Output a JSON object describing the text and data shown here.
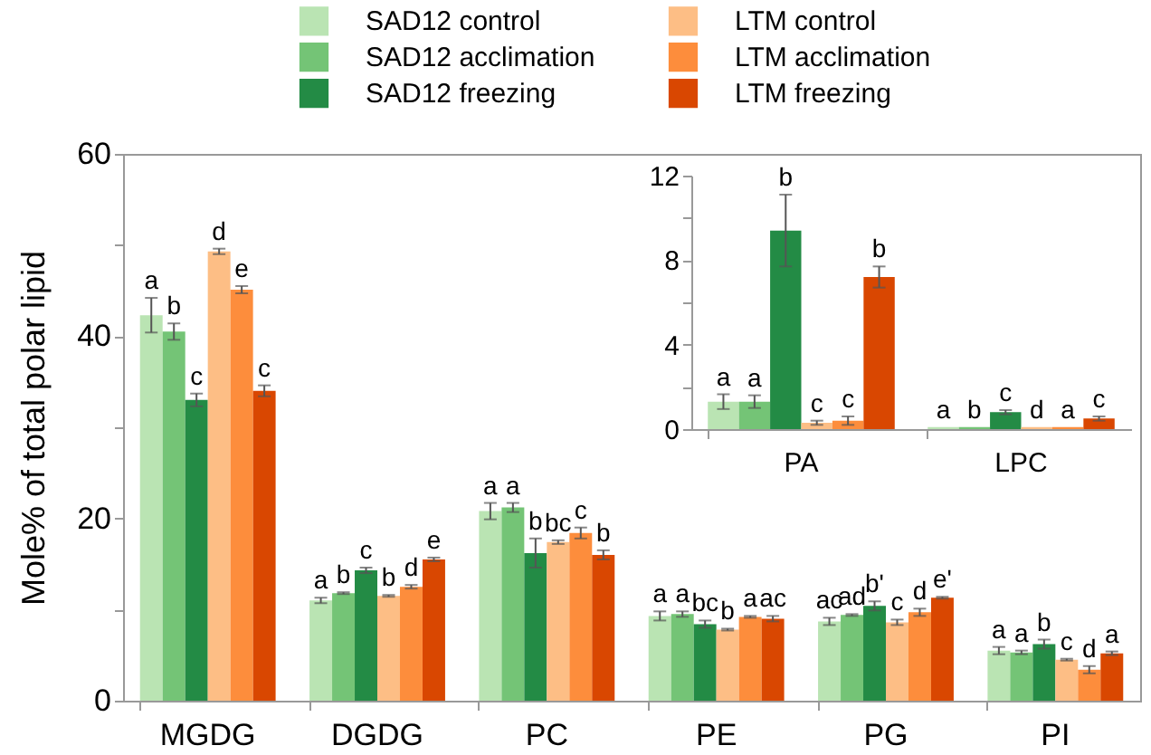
{
  "chart_data": [
    {
      "type": "bar",
      "ylabel": "Mole% of total polar lipid",
      "categories": [
        "MGDG",
        "DGDG",
        "PC",
        "PE",
        "PG",
        "PI"
      ],
      "ylim": [
        0,
        60
      ],
      "yticks": [
        0,
        {
          "value": 10,
          "label": null
        },
        20,
        {
          "value": 30,
          "label": null
        },
        40,
        {
          "value": 50,
          "label": null
        },
        60
      ],
      "legend": "top",
      "series": [
        {
          "name": "SAD12 control",
          "color": "#bae4b3",
          "values": [
            42.3,
            11.0,
            20.8,
            9.3,
            8.7,
            5.5
          ],
          "errors": [
            1.9,
            0.3,
            0.9,
            0.5,
            0.4,
            0.4
          ],
          "value_labels": [
            "a",
            "a",
            "a",
            "a",
            "ac",
            "a"
          ]
        },
        {
          "name": "SAD12 acclimation",
          "color": "#74c476",
          "values": [
            40.5,
            11.8,
            21.2,
            9.5,
            9.4,
            5.3
          ],
          "errors": [
            0.9,
            0.1,
            0.5,
            0.3,
            0.1,
            0.2
          ],
          "value_labels": [
            "b",
            "b",
            "a",
            "a",
            "ad",
            "a"
          ]
        },
        {
          "name": "SAD12 freezing",
          "color": "#238b45",
          "values": [
            33.0,
            14.3,
            16.2,
            8.4,
            10.4,
            6.2
          ],
          "errors": [
            0.7,
            0.3,
            1.6,
            0.4,
            0.5,
            0.5
          ],
          "value_labels": [
            "c",
            "c",
            "b",
            "bc",
            "b'",
            "b"
          ]
        },
        {
          "name": "LTM control",
          "color": "#fdbe85",
          "values": [
            49.3,
            11.5,
            17.4,
            7.8,
            8.6,
            4.5
          ],
          "errors": [
            0.3,
            0.1,
            0.2,
            0.1,
            0.3,
            0.1
          ],
          "value_labels": [
            "d",
            "b",
            "bc",
            "b",
            "c",
            "c"
          ]
        },
        {
          "name": "LTM acclimation",
          "color": "#fd8d3c",
          "values": [
            45.1,
            12.5,
            18.4,
            9.2,
            9.7,
            3.4
          ],
          "errors": [
            0.4,
            0.2,
            0.6,
            0.1,
            0.4,
            0.4
          ],
          "value_labels": [
            "e",
            "d",
            "c",
            "a",
            "d",
            "d"
          ]
        },
        {
          "name": "LTM freezing",
          "color": "#d94701",
          "values": [
            34.0,
            15.5,
            16.0,
            9.0,
            11.3,
            5.2
          ],
          "errors": [
            0.6,
            0.2,
            0.5,
            0.3,
            0.1,
            0.2
          ],
          "value_labels": [
            "c",
            "e",
            "b",
            "ac",
            "e'",
            "a"
          ]
        }
      ]
    },
    {
      "type": "bar",
      "categories": [
        "PA",
        "LPC"
      ],
      "ylim": [
        0,
        12
      ],
      "yticks": [
        0,
        {
          "value": 2,
          "label": null
        },
        4,
        {
          "value": 6,
          "label": null
        },
        8,
        {
          "value": 10,
          "label": null
        },
        12
      ],
      "series": [
        {
          "color": "#bae4b3",
          "values": [
            1.3,
            0.1
          ],
          "errors": [
            0.35,
            null
          ],
          "value_labels": [
            "a",
            "a"
          ]
        },
        {
          "color": "#74c476",
          "values": [
            1.3,
            0.1
          ],
          "errors": [
            0.3,
            null
          ],
          "value_labels": [
            "a",
            "b"
          ]
        },
        {
          "color": "#238b45",
          "values": [
            9.4,
            0.8
          ],
          "errors": [
            1.7,
            0.1
          ],
          "value_labels": [
            "b",
            "c"
          ]
        },
        {
          "color": "#fdbe85",
          "values": [
            0.3,
            0.1
          ],
          "errors": [
            0.1,
            null
          ],
          "value_labels": [
            "c",
            "d"
          ]
        },
        {
          "color": "#fd8d3c",
          "values": [
            0.4,
            0.1
          ],
          "errors": [
            0.2,
            null
          ],
          "value_labels": [
            "c",
            "a"
          ]
        },
        {
          "color": "#d94701",
          "values": [
            7.2,
            0.5
          ],
          "errors": [
            0.5,
            0.1
          ],
          "value_labels": [
            "b",
            "c"
          ]
        }
      ]
    }
  ]
}
